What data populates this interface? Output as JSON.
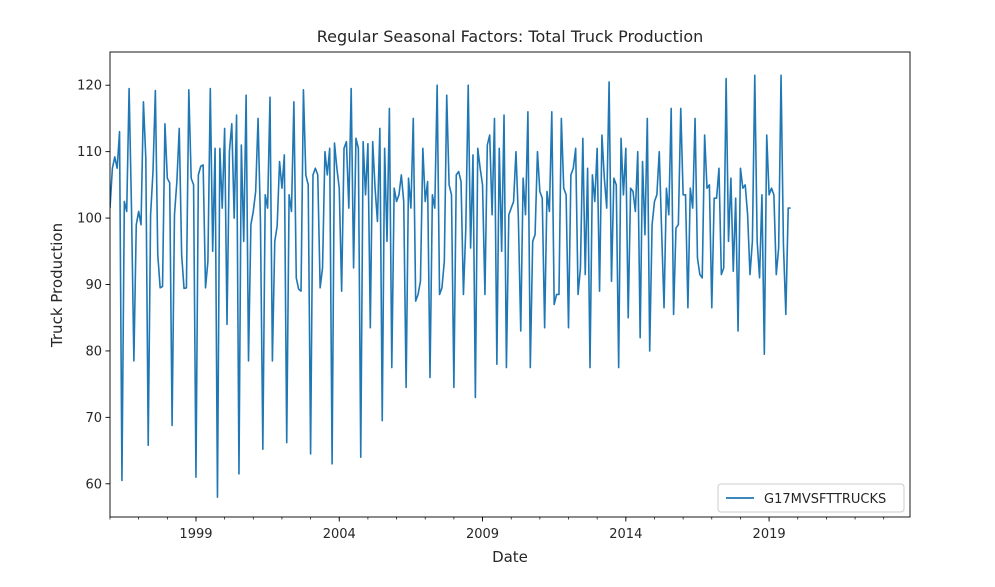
{
  "chart_data": {
    "type": "line",
    "title": "Regular Seasonal Factors: Total Truck Production",
    "xlabel": "Date",
    "ylabel": "Truck Production",
    "x_ticks": [
      "1999",
      "2004",
      "2009",
      "2014",
      "2019"
    ],
    "y_ticks": [
      60,
      70,
      80,
      90,
      100,
      110,
      120
    ],
    "xlim": [
      "1996-01",
      "2023-12"
    ],
    "ylim": [
      55,
      125
    ],
    "grid": false,
    "legend": "bottom-right",
    "line_color": "#1f77b4",
    "series": [
      {
        "name": "G17MVSFTTRUCKS",
        "start": "1996-01",
        "frequency": "monthly",
        "values": [
          101.5,
          107.5,
          109.2,
          107.5,
          113.0,
          60.5,
          102.5,
          101.0,
          119.5,
          101.5,
          78.5,
          99.0,
          101.0,
          99.0,
          117.5,
          109.0,
          65.8,
          100.5,
          107.0,
          119.2,
          94.5,
          89.5,
          89.7,
          114.2,
          106.0,
          105.3,
          68.8,
          100.5,
          105.5,
          113.5,
          94.5,
          89.4,
          89.5,
          119.3,
          106.0,
          105.0,
          61.0,
          106.5,
          107.8,
          108.0,
          89.5,
          93.5,
          119.5,
          95.0,
          110.5,
          58.0,
          110.5,
          101.5,
          113.5,
          84.0,
          110.0,
          114.2,
          100.0,
          115.5,
          61.5,
          111.0,
          96.5,
          118.5,
          78.5,
          99.0,
          101.0,
          104.0,
          115.0,
          99.5,
          65.2,
          103.5,
          101.5,
          118.2,
          78.5,
          96.5,
          98.8,
          108.5,
          104.5,
          109.5,
          66.2,
          103.5,
          101.0,
          117.5,
          91.0,
          89.3,
          89.0,
          119.3,
          106.5,
          105.0,
          64.5,
          106.5,
          107.5,
          106.5,
          89.5,
          92.5,
          110.0,
          106.5,
          110.5,
          63.0,
          111.3,
          107.5,
          104.5,
          89.0,
          110.5,
          111.5,
          101.5,
          119.5,
          92.5,
          112.0,
          110.5,
          64.0,
          111.5,
          103.5,
          111.2,
          83.5,
          111.5,
          104.5,
          99.5,
          113.5,
          69.5,
          110.5,
          96.5,
          116.5,
          77.5,
          104.5,
          102.5,
          103.5,
          106.5,
          102.5,
          74.5,
          106.0,
          101.5,
          115.0,
          87.5,
          88.5,
          90.5,
          110.5,
          102.5,
          105.5,
          76.0,
          103.5,
          101.5,
          120.0,
          88.5,
          89.5,
          93.5,
          118.5,
          105.0,
          103.5,
          74.5,
          106.5,
          107.0,
          105.5,
          88.5,
          98.5,
          120.0,
          95.5,
          109.5,
          73.0,
          110.5,
          107.5,
          105.0,
          88.5,
          111.0,
          112.5,
          100.5,
          115.0,
          78.0,
          110.5,
          95.0,
          115.5,
          77.5,
          100.5,
          101.5,
          102.5,
          110.0,
          100.0,
          83.0,
          106.0,
          100.5,
          116.0,
          77.5,
          96.5,
          97.5,
          110.0,
          104.0,
          103.0,
          83.5,
          104.0,
          101.0,
          116.0,
          87.0,
          88.5,
          88.5,
          115.0,
          104.5,
          103.5,
          83.5,
          106.5,
          107.5,
          110.5,
          88.5,
          92.5,
          112.0,
          91.5,
          107.5,
          77.5,
          106.5,
          102.5,
          110.5,
          89.0,
          112.5,
          106.0,
          101.5,
          120.5,
          90.5,
          106.0,
          105.0,
          77.5,
          112.0,
          103.5,
          110.5,
          85.0,
          104.5,
          104.0,
          101.0,
          110.0,
          82.0,
          108.5,
          97.5,
          115.0,
          80.0,
          99.0,
          102.5,
          103.5,
          110.0,
          98.0,
          86.5,
          104.5,
          100.5,
          116.5,
          85.5,
          98.5,
          99.0,
          116.5,
          103.5,
          103.5,
          86.5,
          104.5,
          101.5,
          115.0,
          94.0,
          91.5,
          91.0,
          112.5,
          104.5,
          105.0,
          86.5,
          103.0,
          103.0,
          107.5,
          91.5,
          92.5,
          121.0,
          96.5,
          106.0,
          92.0,
          103.0,
          83.0,
          107.5,
          104.5,
          105.0,
          100.5,
          91.5,
          96.5,
          121.5,
          96.5,
          91.0,
          103.5,
          79.5,
          112.5,
          103.5,
          104.5,
          103.5,
          91.5,
          95.5,
          121.5,
          96.0,
          85.5,
          101.5,
          101.5
        ]
      }
    ]
  }
}
